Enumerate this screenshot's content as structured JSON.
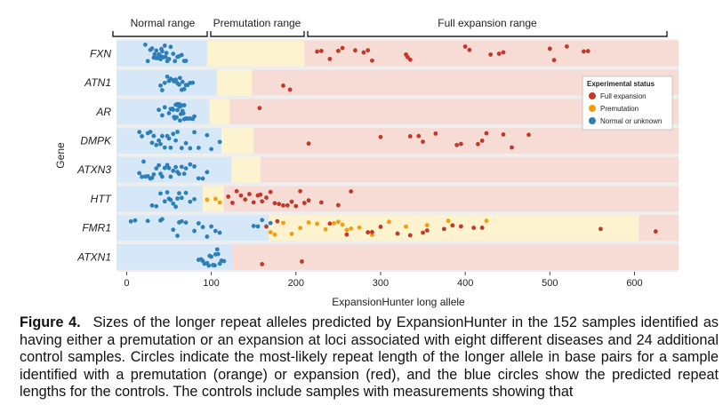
{
  "chart_data": {
    "type": "scatter",
    "xlabel": "ExpansionHunter long allele",
    "ylabel": "Gene",
    "xlim": [
      -12,
      652
    ],
    "xticks": [
      0,
      100,
      200,
      300,
      400,
      500,
      600
    ],
    "range_labels": [
      "Normal range",
      "Premutation range",
      "Full expansion range"
    ],
    "legend": {
      "title": "Experimental status",
      "position": "top-right",
      "entries": [
        {
          "label": "Full expansion",
          "color": "#c0392b"
        },
        {
          "label": "Premutation",
          "color": "#f39c12"
        },
        {
          "label": "Normal or unknown",
          "color": "#2e7fb8"
        }
      ]
    },
    "colors": {
      "normal_band": "#d6e8f7",
      "premutation_band": "#fdf3cf",
      "expansion_band": "#f6dcd4",
      "panel_bg": "#eeeeee"
    },
    "genes": [
      {
        "name": "FXN",
        "normal_max": 95,
        "premut_max": 210,
        "normal_values": [
          22,
          25,
          28,
          30,
          32,
          33,
          35,
          35,
          36,
          38,
          38,
          40,
          40,
          41,
          42,
          43,
          44,
          45,
          46,
          47,
          48,
          50,
          52,
          55,
          57,
          60,
          62,
          65,
          68,
          70
        ],
        "premut_values": [],
        "expansion_values": [
          225,
          230,
          240,
          250,
          255,
          270,
          280,
          285,
          290,
          330,
          332,
          335,
          400,
          405,
          430,
          440,
          445,
          500,
          505,
          520,
          540,
          545
        ]
      },
      {
        "name": "ATN1",
        "normal_max": 107,
        "premut_max": 148,
        "normal_values": [
          40,
          42,
          45,
          48,
          50,
          52,
          55,
          56,
          58,
          60,
          62,
          63,
          65,
          66,
          68,
          70,
          72,
          75,
          78
        ],
        "premut_values": [],
        "expansion_values": [
          185,
          193
        ]
      },
      {
        "name": "AR",
        "normal_max": 98,
        "premut_max": 122,
        "normal_values": [
          38,
          42,
          45,
          50,
          52,
          54,
          55,
          56,
          57,
          58,
          59,
          60,
          60,
          61,
          62,
          63,
          63,
          64,
          65,
          66,
          67,
          68,
          68,
          70,
          72,
          75,
          78,
          80
        ],
        "premut_values": [],
        "expansion_values": [
          157
        ]
      },
      {
        "name": "DMPK",
        "normal_max": 112,
        "premut_max": 150,
        "normal_values": [
          15,
          18,
          25,
          28,
          30,
          32,
          35,
          38,
          40,
          42,
          45,
          48,
          50,
          52,
          55,
          58,
          60,
          65,
          70,
          75,
          80,
          85,
          95,
          100,
          110
        ],
        "premut_values": [],
        "expansion_values": [
          215,
          300,
          335,
          345,
          350,
          365,
          390,
          395,
          415,
          420,
          425,
          445,
          455,
          475
        ]
      },
      {
        "name": "ATXN3",
        "normal_max": 124,
        "premut_max": 158,
        "normal_values": [
          15,
          18,
          20,
          22,
          25,
          28,
          30,
          32,
          35,
          38,
          40,
          42,
          45,
          48,
          50,
          52,
          55,
          58,
          60,
          62,
          65,
          68,
          70,
          75,
          80,
          85,
          90,
          95
        ],
        "premut_values": [],
        "expansion_values": []
      },
      {
        "name": "HTT",
        "normal_max": 90,
        "premut_max": 115,
        "normal_values": [
          30,
          35,
          40,
          45,
          48,
          50,
          52,
          55,
          58,
          60,
          62,
          65,
          70,
          75,
          80
        ],
        "premut_values": [
          95,
          105,
          110
        ],
        "expansion_values": [
          120,
          125,
          130,
          135,
          140,
          145,
          150,
          155,
          158,
          160,
          165,
          170,
          175,
          180,
          185,
          190,
          195,
          200,
          205,
          210,
          215,
          230,
          250,
          265
        ]
      },
      {
        "name": "FMR1",
        "normal_max": 168,
        "premut_max": 605,
        "normal_values": [
          5,
          10,
          25,
          40,
          42,
          55,
          60,
          62,
          65,
          70,
          80,
          85,
          90,
          95,
          100,
          105,
          110,
          150,
          155,
          160,
          170
        ],
        "premut_values": [
          170,
          175,
          185,
          195,
          205,
          215,
          225,
          235,
          245,
          250,
          255,
          260,
          265,
          275,
          290,
          310,
          330,
          355,
          380,
          425
        ],
        "expansion_values": [
          165,
          178,
          240,
          260,
          285,
          290,
          300,
          320,
          335,
          350,
          355,
          375,
          385,
          395,
          410,
          420,
          560,
          625
        ]
      },
      {
        "name": "ATXN1",
        "normal_max": 125,
        "premut_max": 125,
        "normal_values": [
          85,
          88,
          90,
          92,
          95,
          97,
          98,
          100,
          102,
          104,
          105,
          107,
          108,
          110,
          112,
          115
        ],
        "premut_values": [],
        "expansion_values": [
          160,
          207
        ]
      }
    ]
  },
  "caption": {
    "figure_label": "Figure 4.",
    "text": "Sizes of the longer repeat alleles predicted by ExpansionHunter in the 152 samples identified as having either a premutation or an expansion at loci associated with eight different diseases and 24 additional control samples. Circles indicate the most-likely repeat length of the longer allele in base pairs for a sample identified with a premutation (orange) or expansion (red), and the blue circles show the predicted repeat lengths for the controls. The controls include samples with measurements showing that"
  }
}
